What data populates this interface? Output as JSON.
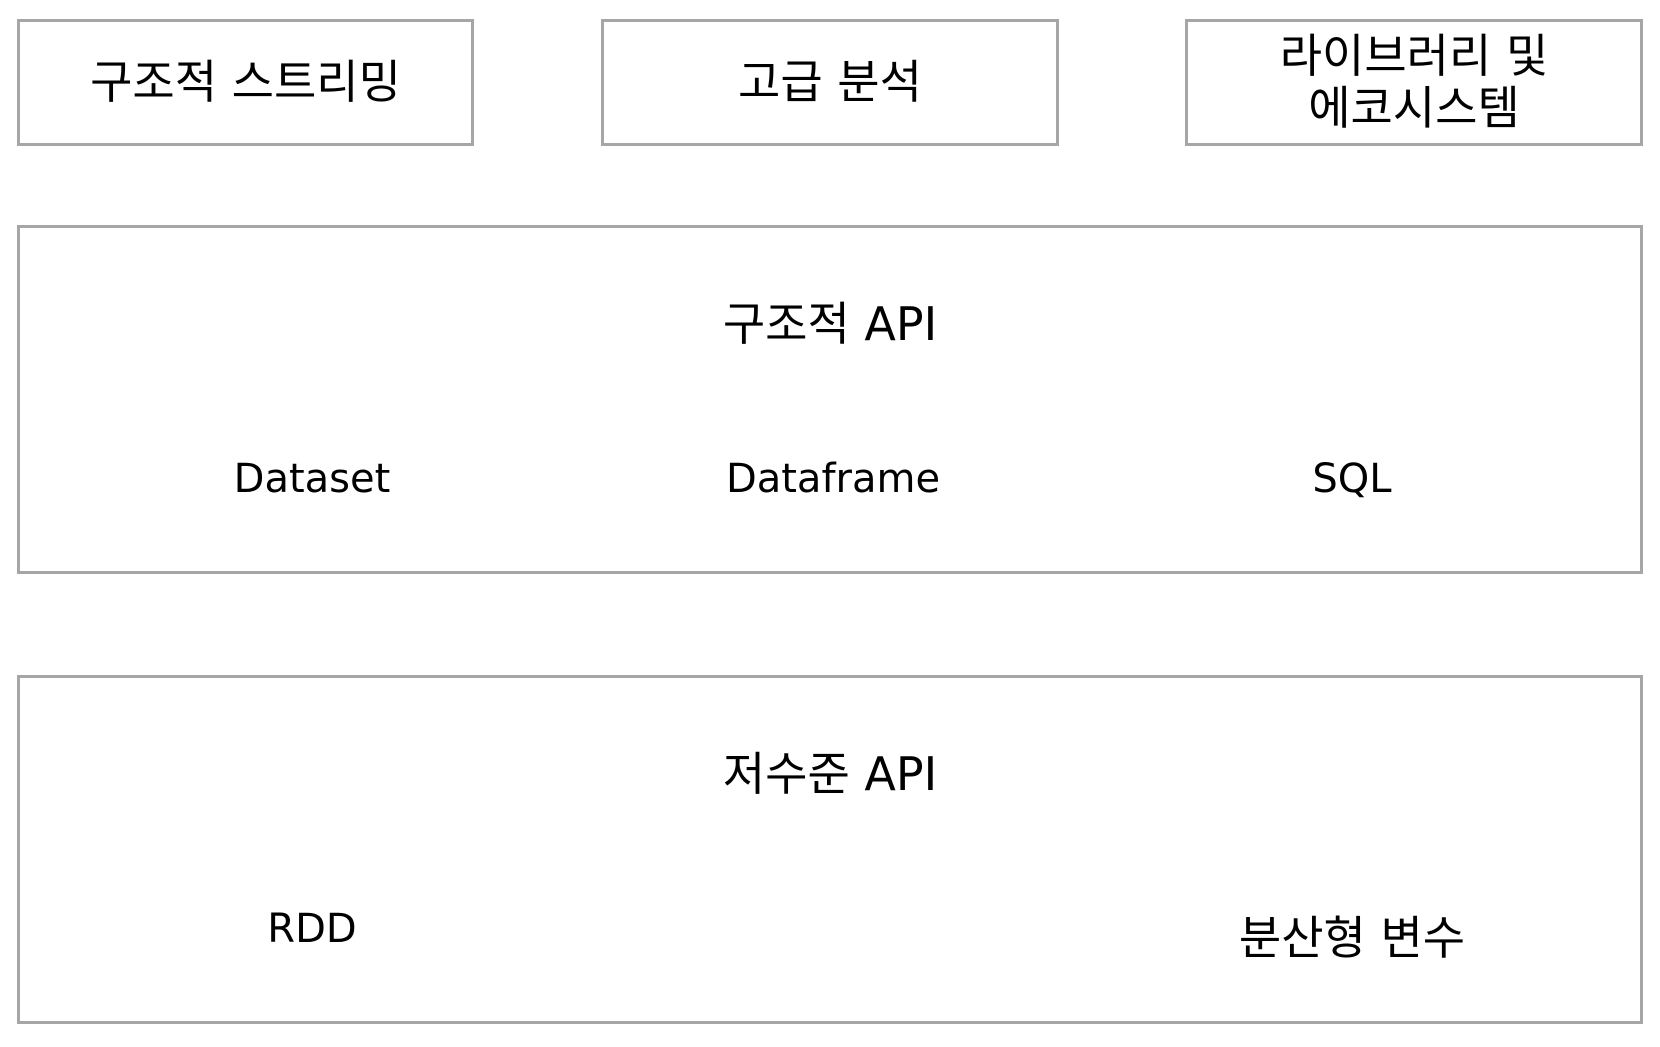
{
  "top_row": {
    "structured_streaming": "구조적 스트리밍",
    "advanced_analytics": "고급 분석",
    "libraries_ecosystem_line1": "라이브러리 및",
    "libraries_ecosystem_line2": "에코시스템"
  },
  "structured_api": {
    "title": "구조적 API",
    "items": [
      "Dataset",
      "Dataframe",
      "SQL"
    ]
  },
  "low_level_api": {
    "title": "저수준 API",
    "items": [
      "RDD",
      "분산형 변수"
    ]
  },
  "colors": {
    "border": "#a6a6a6",
    "background": "#ffffff",
    "text": "#000000"
  }
}
